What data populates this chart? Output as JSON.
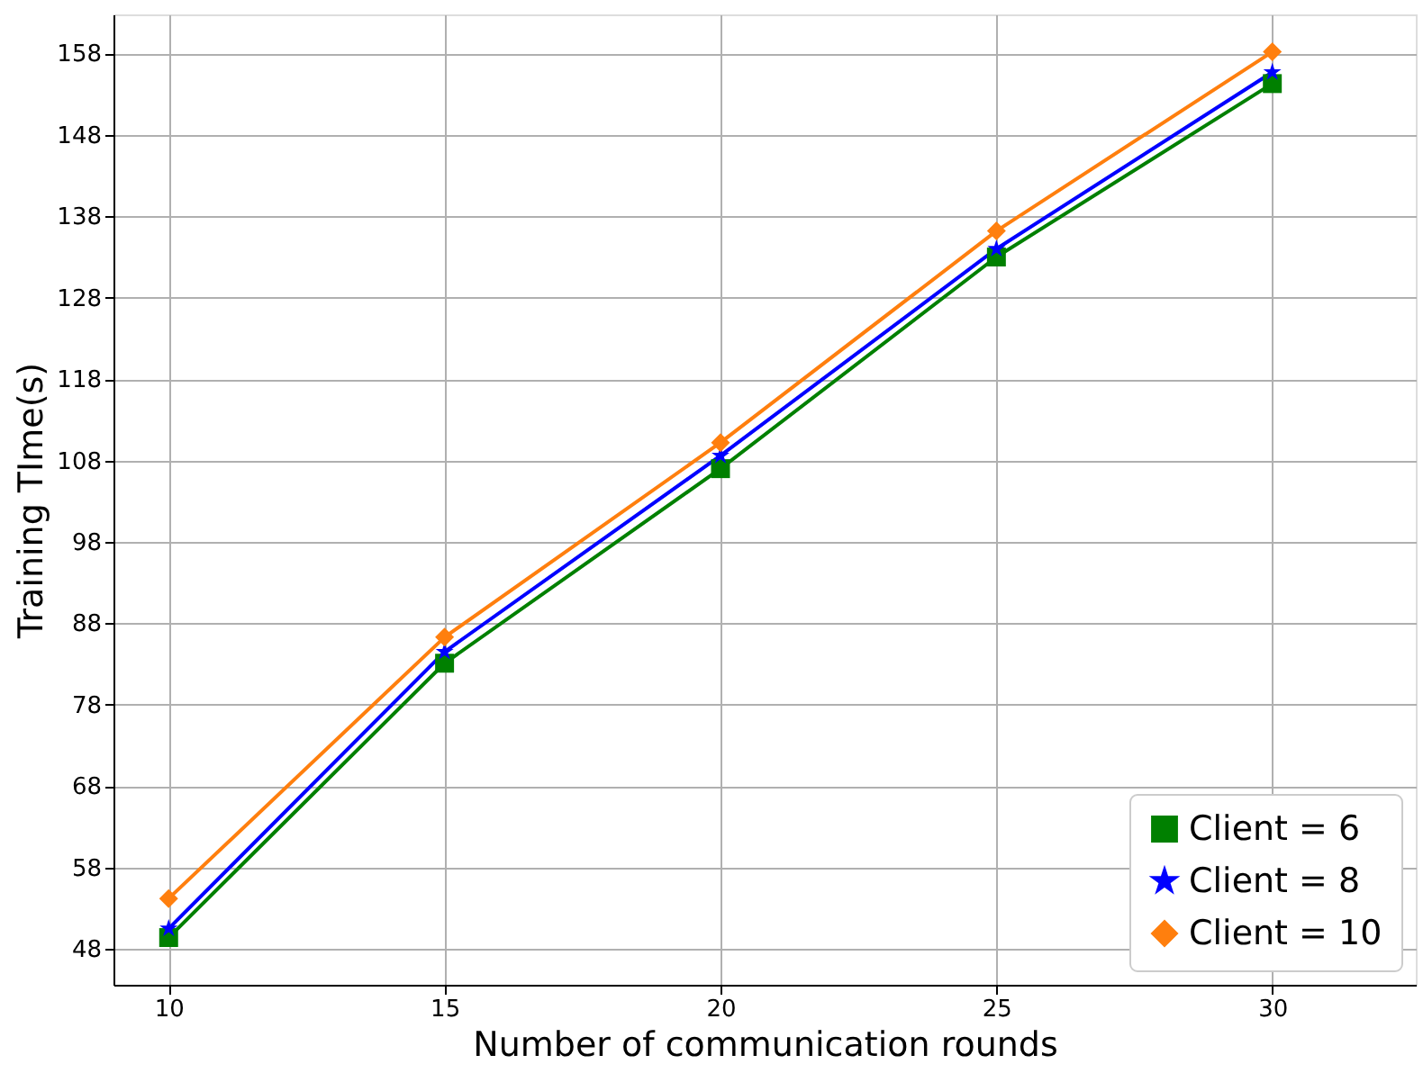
{
  "chart_data": {
    "type": "line",
    "xlabel": "Number of communication rounds",
    "ylabel": "Training TIme(s)",
    "x": [
      10,
      15,
      20,
      25,
      30
    ],
    "series": [
      {
        "name": "Client = 6",
        "color": "#008000",
        "marker": "square",
        "values": [
          49.4,
          83.1,
          107,
          133,
          154.3
        ]
      },
      {
        "name": "Client = 8",
        "color": "#0000ff",
        "marker": "star",
        "values": [
          50.5,
          84.5,
          108.6,
          134,
          155.7
        ]
      },
      {
        "name": "Client = 10",
        "color": "#ff7f0e",
        "marker": "diamond",
        "values": [
          54.2,
          86.3,
          110.2,
          136.2,
          158.2
        ]
      }
    ],
    "xlim": [
      9,
      32.6
    ],
    "xticks": [
      10,
      15,
      20,
      25,
      30
    ],
    "ylim": [
      43.6,
      162.8
    ],
    "yticks": [
      48,
      58,
      68,
      78,
      88,
      98,
      108,
      118,
      128,
      138,
      148,
      158
    ],
    "grid": true,
    "legend": "bottom right",
    "line_style": "solid"
  }
}
